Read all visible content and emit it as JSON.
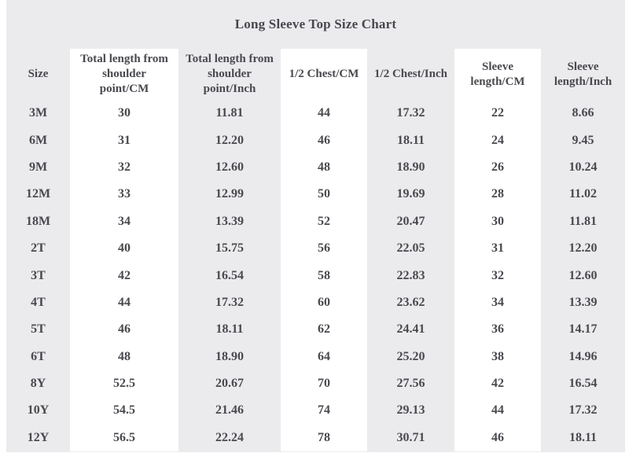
{
  "title": "Long Sleeve Top Size Chart",
  "colors": {
    "page_background": "#ffffff",
    "block_background": "#ebebed",
    "stripe_background": "#ffffff",
    "text": "#49494f"
  },
  "chart_data": {
    "type": "table",
    "title": "Long Sleeve Top Size Chart",
    "columns": [
      "Size",
      "Total length from shoulder point/CM",
      "Total length from shoulder point/Inch",
      "1/2 Chest/CM",
      "1/2 Chest/Inch",
      "Sleeve length/CM",
      "Sleeve length/Inch"
    ],
    "rows": [
      [
        "3M",
        "30",
        "11.81",
        "44",
        "17.32",
        "22",
        "8.66"
      ],
      [
        "6M",
        "31",
        "12.20",
        "46",
        "18.11",
        "24",
        "9.45"
      ],
      [
        "9M",
        "32",
        "12.60",
        "48",
        "18.90",
        "26",
        "10.24"
      ],
      [
        "12M",
        "33",
        "12.99",
        "50",
        "19.69",
        "28",
        "11.02"
      ],
      [
        "18M",
        "34",
        "13.39",
        "52",
        "20.47",
        "30",
        "11.81"
      ],
      [
        "2T",
        "40",
        "15.75",
        "56",
        "22.05",
        "31",
        "12.20"
      ],
      [
        "3T",
        "42",
        "16.54",
        "58",
        "22.83",
        "32",
        "12.60"
      ],
      [
        "4T",
        "44",
        "17.32",
        "60",
        "23.62",
        "34",
        "13.39"
      ],
      [
        "5T",
        "46",
        "18.11",
        "62",
        "24.41",
        "36",
        "14.17"
      ],
      [
        "6T",
        "48",
        "18.90",
        "64",
        "25.20",
        "38",
        "14.96"
      ],
      [
        "8Y",
        "52.5",
        "20.67",
        "70",
        "27.56",
        "42",
        "16.54"
      ],
      [
        "10Y",
        "54.5",
        "21.46",
        "74",
        "29.13",
        "44",
        "17.32"
      ],
      [
        "12Y",
        "56.5",
        "22.24",
        "78",
        "30.71",
        "46",
        "18.11"
      ]
    ]
  }
}
